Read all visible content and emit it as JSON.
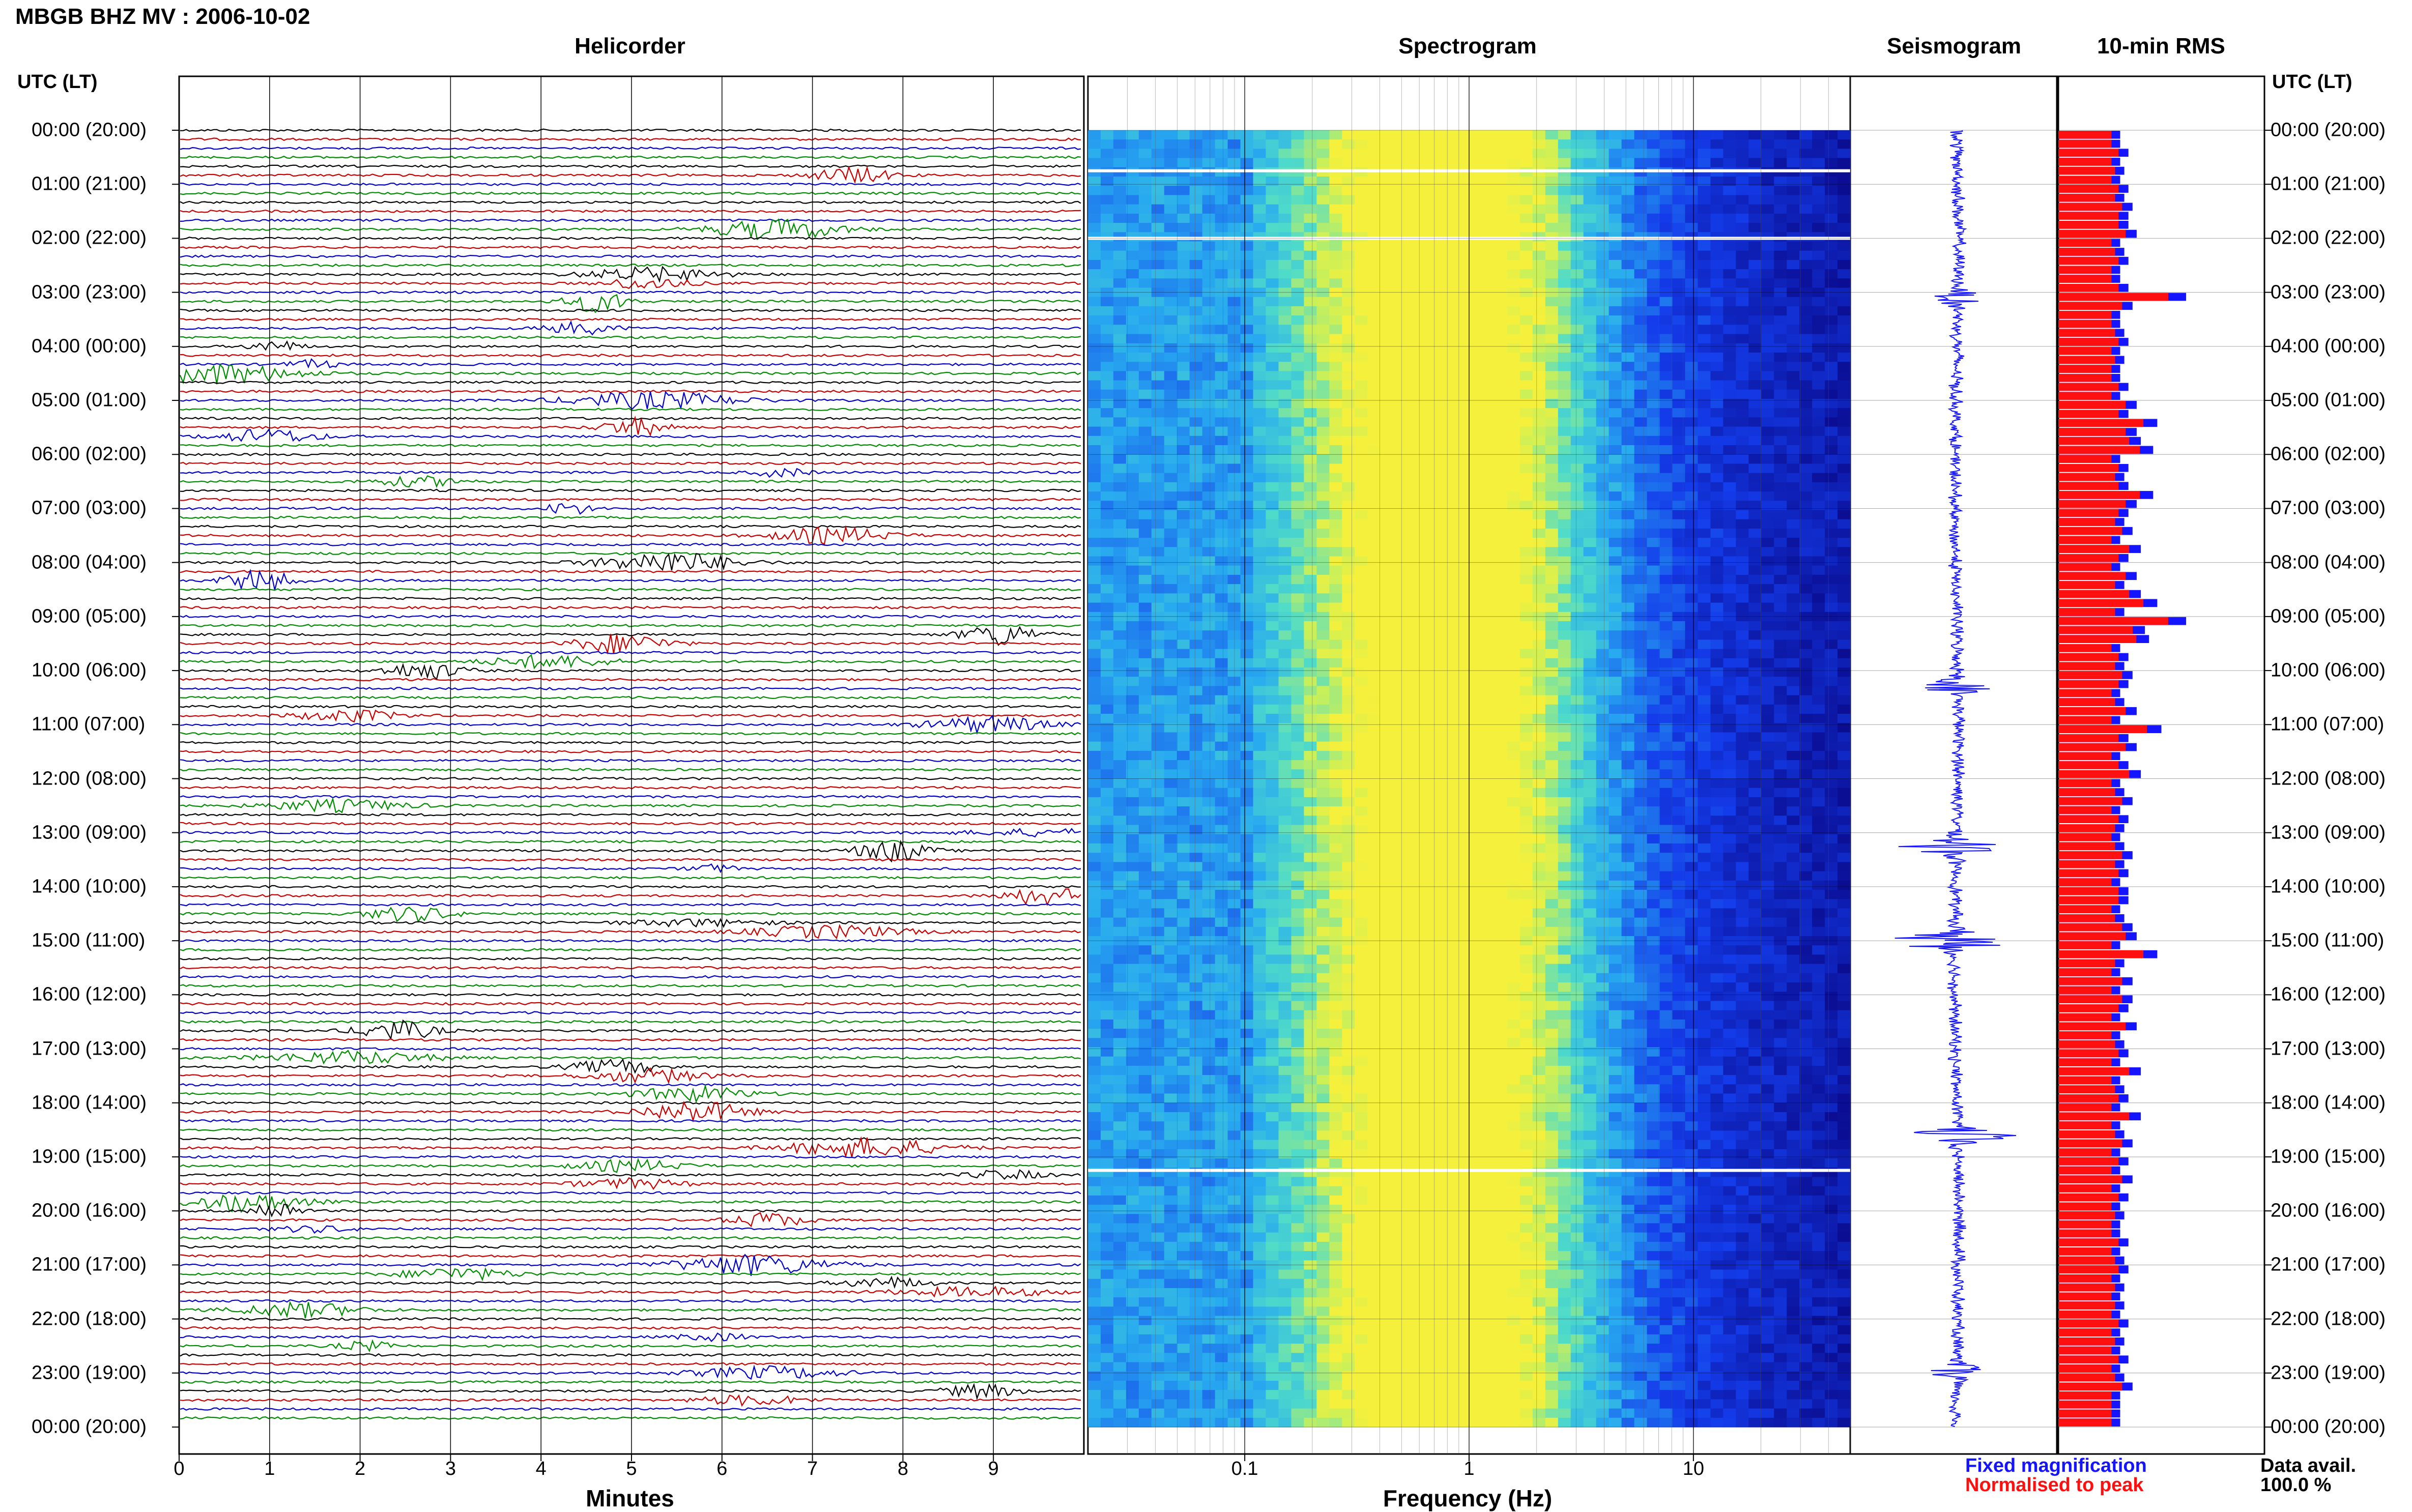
{
  "header": {
    "title": "MBGB BHZ MV : 2006-10-02"
  },
  "panels": {
    "helicorder": "Helicorder",
    "spectrogram": "Spectrogram",
    "seismogram": "Seismogram",
    "rms": "10-min RMS"
  },
  "timezone_label": "UTC (LT)",
  "hour_labels": [
    "00:00 (20:00)",
    "01:00 (21:00)",
    "02:00 (22:00)",
    "03:00 (23:00)",
    "04:00 (00:00)",
    "05:00 (01:00)",
    "06:00 (02:00)",
    "07:00 (03:00)",
    "08:00 (04:00)",
    "09:00 (05:00)",
    "10:00 (06:00)",
    "11:00 (07:00)",
    "12:00 (08:00)",
    "13:00 (09:00)",
    "14:00 (10:00)",
    "15:00 (11:00)",
    "16:00 (12:00)",
    "17:00 (13:00)",
    "18:00 (14:00)",
    "19:00 (15:00)",
    "20:00 (16:00)",
    "21:00 (17:00)",
    "22:00 (18:00)",
    "23:00 (19:00)",
    "00:00 (20:00)"
  ],
  "helicorder_axis": {
    "label": "Minutes",
    "ticks": [
      "0",
      "1",
      "2",
      "3",
      "4",
      "5",
      "6",
      "7",
      "8",
      "9"
    ],
    "line_colors": [
      "#000000",
      "#c80000",
      "#0000c8",
      "#008c00"
    ]
  },
  "spectrogram_axis": {
    "label": "Frequency (Hz)",
    "ticks": [
      "0.1",
      "1",
      "10"
    ]
  },
  "legend": {
    "fixed": "Fixed magnification",
    "normalised": "Normalised to peak",
    "fixed_color": "#1414ff",
    "normalised_color": "#ff1010"
  },
  "availability": {
    "label": "Data avail.",
    "value": "100.0 %"
  },
  "chart_data": {
    "type": "bar",
    "title": "10-min RMS",
    "note_series": [
      "Fixed magnification",
      "Normalised to peak"
    ],
    "rms_fixed": [
      0.3,
      0.3,
      0.34,
      0.3,
      0.32,
      0.3,
      0.34,
      0.32,
      0.36,
      0.34,
      0.34,
      0.38,
      0.3,
      0.32,
      0.34,
      0.3,
      0.3,
      0.34,
      0.62,
      0.36,
      0.3,
      0.3,
      0.32,
      0.34,
      0.3,
      0.32,
      0.3,
      0.3,
      0.34,
      0.3,
      0.38,
      0.34,
      0.48,
      0.38,
      0.4,
      0.46,
      0.3,
      0.34,
      0.32,
      0.34,
      0.46,
      0.38,
      0.34,
      0.32,
      0.36,
      0.3,
      0.4,
      0.34,
      0.3,
      0.38,
      0.32,
      0.4,
      0.48,
      0.32,
      0.62,
      0.42,
      0.44,
      0.3,
      0.34,
      0.32,
      0.36,
      0.34,
      0.3,
      0.32,
      0.38,
      0.3,
      0.5,
      0.34,
      0.38,
      0.3,
      0.34,
      0.4,
      0.3,
      0.32,
      0.36,
      0.3,
      0.34,
      0.32,
      0.3,
      0.32,
      0.36,
      0.32,
      0.34,
      0.3,
      0.34,
      0.34,
      0.3,
      0.32,
      0.36,
      0.38,
      0.3,
      0.48,
      0.32,
      0.3,
      0.36,
      0.3,
      0.36,
      0.34,
      0.3,
      0.38,
      0.3,
      0.32,
      0.34,
      0.3,
      0.4,
      0.3,
      0.32,
      0.34,
      0.3,
      0.4,
      0.3,
      0.32,
      0.36,
      0.3,
      0.34,
      0.3,
      0.36,
      0.3,
      0.34,
      0.3,
      0.32,
      0.3,
      0.3,
      0.34,
      0.3,
      0.32,
      0.34,
      0.3,
      0.32,
      0.3,
      0.32,
      0.3,
      0.34,
      0.3,
      0.32,
      0.3,
      0.34,
      0.3,
      0.32,
      0.36,
      0.3,
      0.3,
      0.3,
      0.3
    ],
    "rms_normalised_note": "Normalised to peak",
    "rms_x_range": [
      0,
      1
    ],
    "hours": 24,
    "bins_per_hour": 6
  }
}
